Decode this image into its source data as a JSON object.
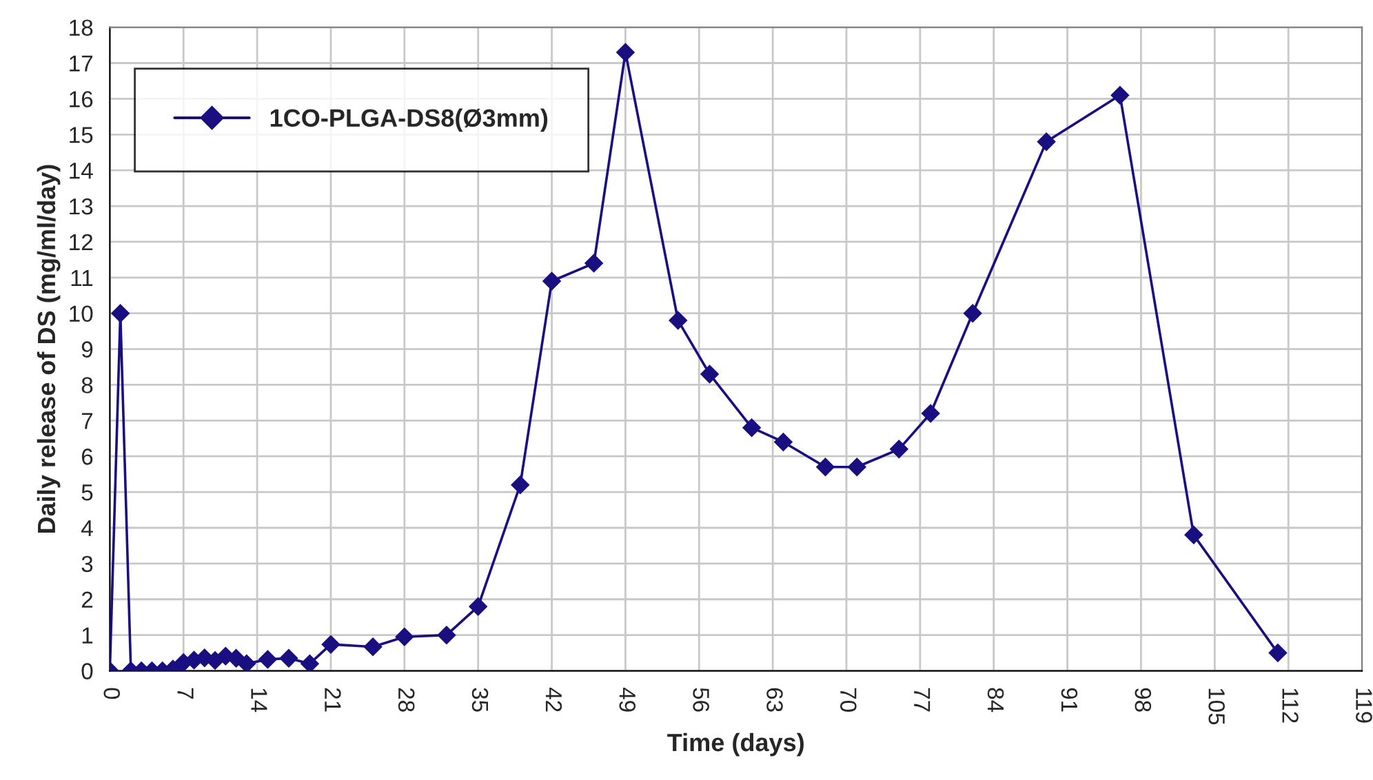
{
  "chart_data": {
    "type": "line",
    "xlabel": "Time (days)",
    "ylabel": "Daily release of DS (mg/ml/day)",
    "x": [
      0,
      1,
      2,
      3,
      4,
      5,
      6,
      7,
      8,
      9,
      10,
      11,
      12,
      13,
      15,
      17,
      19,
      21,
      25,
      28,
      32,
      35,
      39,
      42,
      46,
      49,
      54,
      57,
      61,
      64,
      68,
      71,
      75,
      78,
      82,
      89,
      96,
      103,
      111
    ],
    "series": [
      {
        "name": "1CO-PLGA-DS8(Ø3mm)",
        "color": "#1a0f80",
        "values": [
          0,
          10,
          0,
          0,
          0,
          0,
          0.05,
          0.23,
          0.3,
          0.36,
          0.29,
          0.41,
          0.35,
          0.2,
          0.32,
          0.35,
          0.2,
          0.74,
          0.67,
          0.95,
          1.0,
          1.8,
          5.2,
          10.9,
          11.4,
          17.3,
          9.8,
          8.3,
          6.8,
          6.4,
          5.7,
          5.7,
          6.2,
          7.2,
          10.0,
          14.8,
          16.1,
          3.8,
          0.5
        ]
      }
    ],
    "xlim": [
      0,
      119
    ],
    "xticks": [
      0,
      7,
      14,
      21,
      28,
      35,
      42,
      49,
      56,
      63,
      70,
      77,
      84,
      91,
      98,
      105,
      112,
      119
    ],
    "ylim": [
      0,
      18
    ],
    "yticks": [
      0,
      1,
      2,
      3,
      4,
      5,
      6,
      7,
      8,
      9,
      10,
      11,
      12,
      13,
      14,
      15,
      16,
      17,
      18
    ],
    "grid": true,
    "legend": "top left",
    "marker": "diamond",
    "line_style": "solid"
  }
}
